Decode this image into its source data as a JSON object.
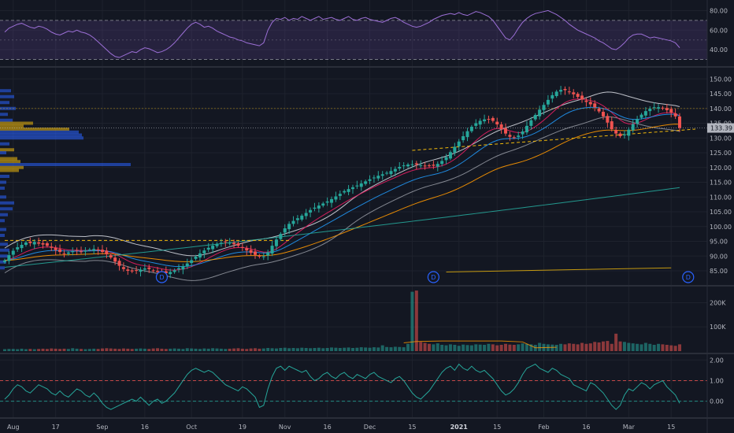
{
  "chart_data": {
    "type": "candlestick",
    "panes": {
      "rsi": {
        "ticks": [
          {
            "v": 80,
            "t": "80.00"
          },
          {
            "v": 60,
            "t": "60.00"
          },
          {
            "v": 40,
            "t": "40.00"
          }
        ],
        "band": [
          30,
          70
        ],
        "range": [
          28,
          86
        ],
        "line_color": "#9c6fd6",
        "band_color": "#7e57c2"
      },
      "price": {
        "ticks": [
          {
            "v": 150,
            "t": "150.00"
          },
          {
            "v": 145,
            "t": "145.00"
          },
          {
            "v": 140,
            "t": "140.00"
          },
          {
            "v": 135,
            "t": "135.00"
          },
          {
            "v": 130,
            "t": "130.00"
          },
          {
            "v": 125,
            "t": "125.00"
          },
          {
            "v": 120,
            "t": "120.00"
          },
          {
            "v": 115,
            "t": "115.00"
          },
          {
            "v": 110,
            "t": "110.00"
          },
          {
            "v": 105,
            "t": "105.00"
          },
          {
            "v": 100,
            "t": "100.00"
          },
          {
            "v": 95,
            "t": "95.00"
          },
          {
            "v": 90,
            "t": "90.00"
          },
          {
            "v": 85,
            "t": "85.00"
          }
        ],
        "range": [
          81.8,
          152.2
        ],
        "last_price": "133.39"
      },
      "volume": {
        "ticks": [
          {
            "v": 200000,
            "t": "200K"
          },
          {
            "v": 100000,
            "t": "100K"
          }
        ],
        "range": [
          0,
          260000
        ]
      },
      "oscillator": {
        "ticks": [
          {
            "v": 2,
            "t": "2.00"
          },
          {
            "v": 1,
            "t": "1.00"
          },
          {
            "v": 0,
            "t": "0.00"
          }
        ],
        "range": [
          -0.55,
          2.05
        ],
        "line_color": "#26a69a"
      }
    },
    "x_axis": [
      {
        "t": "Aug",
        "i": 2,
        "major": false
      },
      {
        "t": "17",
        "i": 12,
        "major": false
      },
      {
        "t": "Sep",
        "i": 23,
        "major": false
      },
      {
        "t": "16",
        "i": 33,
        "major": false
      },
      {
        "t": "Oct",
        "i": 44,
        "major": false
      },
      {
        "t": "19",
        "i": 56,
        "major": false
      },
      {
        "t": "Nov",
        "i": 66,
        "major": false
      },
      {
        "t": "16",
        "i": 76,
        "major": false
      },
      {
        "t": "Dec",
        "i": 86,
        "major": false
      },
      {
        "t": "15",
        "i": 96,
        "major": false
      },
      {
        "t": "2021",
        "i": 107,
        "major": true
      },
      {
        "t": "15",
        "i": 116,
        "major": false
      },
      {
        "t": "Feb",
        "i": 127,
        "major": false
      },
      {
        "t": "16",
        "i": 137,
        "major": false
      },
      {
        "t": "Mar",
        "i": 147,
        "major": false
      },
      {
        "t": "15",
        "i": 157,
        "major": false
      }
    ],
    "dividends": [
      {
        "i": 37,
        "t": "D"
      },
      {
        "i": 101,
        "t": "D"
      },
      {
        "i": 161,
        "t": "D"
      }
    ],
    "closes": [
      88.5,
      90.3,
      91.8,
      93.0,
      93.8,
      94.6,
      94.4,
      94.8,
      94.2,
      93.9,
      93.5,
      92.8,
      92.0,
      91.4,
      90.9,
      91.2,
      91.6,
      91.9,
      91.5,
      91.9,
      92.2,
      92.4,
      92.0,
      91.4,
      90.6,
      89.5,
      88.1,
      86.7,
      85.6,
      85.0,
      84.8,
      85.0,
      85.4,
      85.8,
      85.6,
      85.1,
      84.6,
      84.4,
      84.2,
      84.6,
      85.2,
      85.9,
      86.6,
      87.5,
      88.6,
      89.8,
      90.9,
      91.9,
      92.8,
      93.5,
      94.1,
      94.5,
      94.7,
      94.5,
      94.0,
      93.5,
      92.8,
      91.9,
      91.1,
      90.4,
      89.8,
      89.9,
      91.3,
      93.5,
      95.6,
      97.5,
      99.4,
      100.9,
      101.9,
      102.8,
      103.7,
      104.6,
      105.6,
      106.4,
      107.1,
      107.8,
      108.5,
      109.3,
      110.2,
      111.1,
      112.0,
      112.7,
      113.3,
      113.9,
      114.6,
      115.3,
      116.0,
      116.6,
      117.2,
      117.7,
      118.2,
      118.8,
      119.5,
      120.2,
      120.7,
      121.0,
      121.1,
      121.0,
      120.8,
      120.6,
      120.5,
      120.6,
      121.2,
      122.2,
      123.5,
      125.2,
      127.0,
      128.8,
      130.6,
      132.3,
      133.8,
      135.0,
      135.8,
      136.3,
      136.3,
      135.8,
      134.6,
      133.0,
      131.5,
      130.4,
      130.2,
      130.8,
      132.2,
      134.1,
      136.0,
      137.8,
      139.6,
      141.2,
      142.9,
      144.5,
      145.7,
      146.3,
      146.2,
      145.6,
      144.8,
      143.9,
      143.0,
      142.2,
      141.4,
      140.4,
      139.0,
      137.3,
      135.2,
      133.0,
      131.5,
      130.6,
      131.2,
      132.8,
      134.7,
      136.4,
      137.9,
      139.1,
      139.9,
      140.4,
      140.4,
      140.0,
      139.4,
      138.6,
      137.3,
      133.39
    ],
    "volume": [
      8,
      9,
      9,
      8,
      10,
      8,
      9,
      8,
      9,
      10,
      9,
      11,
      10,
      9,
      10,
      9,
      12,
      10,
      9,
      8,
      9,
      10,
      9,
      11,
      12,
      11,
      10,
      9,
      11,
      10,
      9,
      10,
      11,
      10,
      9,
      11,
      12,
      10,
      9,
      10,
      11,
      10,
      9,
      12,
      11,
      10,
      9,
      11,
      10,
      12,
      11,
      10,
      9,
      10,
      11,
      12,
      10,
      9,
      11,
      12,
      10,
      11,
      13,
      12,
      11,
      13,
      14,
      12,
      13,
      12,
      14,
      13,
      12,
      13,
      14,
      12,
      13,
      15,
      14,
      13,
      14,
      15,
      13,
      14,
      16,
      15,
      14,
      16,
      15,
      24,
      17,
      16,
      18,
      17,
      16,
      30,
      245,
      250,
      38,
      34,
      30,
      28,
      32,
      26,
      24,
      28,
      26,
      22,
      27,
      25,
      24,
      28,
      27,
      26,
      30,
      28,
      24,
      26,
      30,
      27,
      26,
      28,
      32,
      30,
      28,
      26,
      34,
      30,
      28,
      27,
      26,
      30,
      28,
      32,
      30,
      28,
      34,
      30,
      32,
      38,
      36,
      40,
      42,
      30,
      72,
      40,
      38,
      34,
      32,
      30,
      28,
      34,
      30,
      26,
      30,
      28,
      26,
      24,
      22,
      28
    ],
    "volume_unit": 1000,
    "volume_ma": [
      [
        94,
        34
      ],
      [
        97,
        40
      ],
      [
        103,
        42
      ],
      [
        110,
        42
      ],
      [
        117,
        42
      ],
      [
        122,
        38
      ],
      [
        125,
        14
      ],
      [
        130,
        16
      ]
    ],
    "oscillator": [
      0.1,
      0.3,
      0.6,
      0.8,
      0.7,
      0.5,
      0.4,
      0.6,
      0.8,
      0.7,
      0.6,
      0.4,
      0.3,
      0.5,
      0.3,
      0.2,
      0.4,
      0.6,
      0.5,
      0.3,
      0.2,
      0.4,
      0.2,
      -0.1,
      -0.3,
      -0.4,
      -0.3,
      -0.2,
      -0.1,
      0.0,
      0.1,
      0.0,
      0.2,
      0.0,
      -0.2,
      0.0,
      0.1,
      -0.1,
      0.0,
      0.2,
      0.4,
      0.7,
      1.0,
      1.3,
      1.5,
      1.6,
      1.5,
      1.4,
      1.5,
      1.4,
      1.2,
      1.0,
      0.8,
      0.7,
      0.6,
      0.5,
      0.7,
      0.6,
      0.4,
      0.2,
      -0.3,
      -0.2,
      0.6,
      1.2,
      1.6,
      1.7,
      1.5,
      1.7,
      1.6,
      1.5,
      1.4,
      1.5,
      1.2,
      1.0,
      1.1,
      1.3,
      1.4,
      1.2,
      1.1,
      1.3,
      1.4,
      1.2,
      1.1,
      1.3,
      1.2,
      1.1,
      1.3,
      1.4,
      1.2,
      1.1,
      1.0,
      0.9,
      1.1,
      1.2,
      1.0,
      0.7,
      0.4,
      0.2,
      0.1,
      0.3,
      0.5,
      0.8,
      1.1,
      1.4,
      1.6,
      1.7,
      1.5,
      1.8,
      1.6,
      1.5,
      1.7,
      1.5,
      1.4,
      1.5,
      1.3,
      1.1,
      0.8,
      0.5,
      0.3,
      0.4,
      0.6,
      0.9,
      1.3,
      1.6,
      1.7,
      1.8,
      1.6,
      1.5,
      1.4,
      1.6,
      1.5,
      1.3,
      1.2,
      1.1,
      0.8,
      0.7,
      0.6,
      0.5,
      0.9,
      0.8,
      0.6,
      0.4,
      0.1,
      -0.2,
      -0.4,
      -0.2,
      0.3,
      0.6,
      0.5,
      0.7,
      0.9,
      0.8,
      0.6,
      0.8,
      0.9,
      1.0,
      0.7,
      0.5,
      0.3,
      -0.1
    ],
    "rsi": [
      58,
      62,
      64,
      66,
      67,
      65,
      63,
      62,
      64,
      63,
      61,
      58,
      56,
      55,
      57,
      59,
      58,
      60,
      58,
      57,
      55,
      52,
      48,
      44,
      40,
      36,
      33,
      32,
      34,
      36,
      38,
      37,
      40,
      42,
      41,
      39,
      37,
      38,
      40,
      43,
      47,
      52,
      57,
      62,
      66,
      68,
      66,
      63,
      64,
      62,
      59,
      57,
      55,
      53,
      52,
      50,
      49,
      47,
      46,
      45,
      44,
      47,
      60,
      68,
      72,
      71,
      73,
      70,
      72,
      71,
      74,
      72,
      70,
      72,
      74,
      71,
      72,
      73,
      71,
      70,
      72,
      74,
      71,
      70,
      72,
      73,
      71,
      70,
      69,
      68,
      70,
      72,
      73,
      71,
      68,
      66,
      64,
      63,
      64,
      66,
      68,
      71,
      73,
      75,
      76,
      77,
      76,
      78,
      76,
      75,
      77,
      79,
      78,
      76,
      74,
      70,
      64,
      58,
      52,
      50,
      55,
      62,
      68,
      72,
      75,
      77,
      78,
      79,
      80,
      78,
      76,
      73,
      70,
      66,
      63,
      60,
      58,
      56,
      54,
      52,
      49,
      47,
      44,
      41,
      40,
      43,
      47,
      52,
      55,
      56,
      56,
      54,
      52,
      53,
      52,
      51,
      50,
      49,
      47,
      42
    ]
  }
}
